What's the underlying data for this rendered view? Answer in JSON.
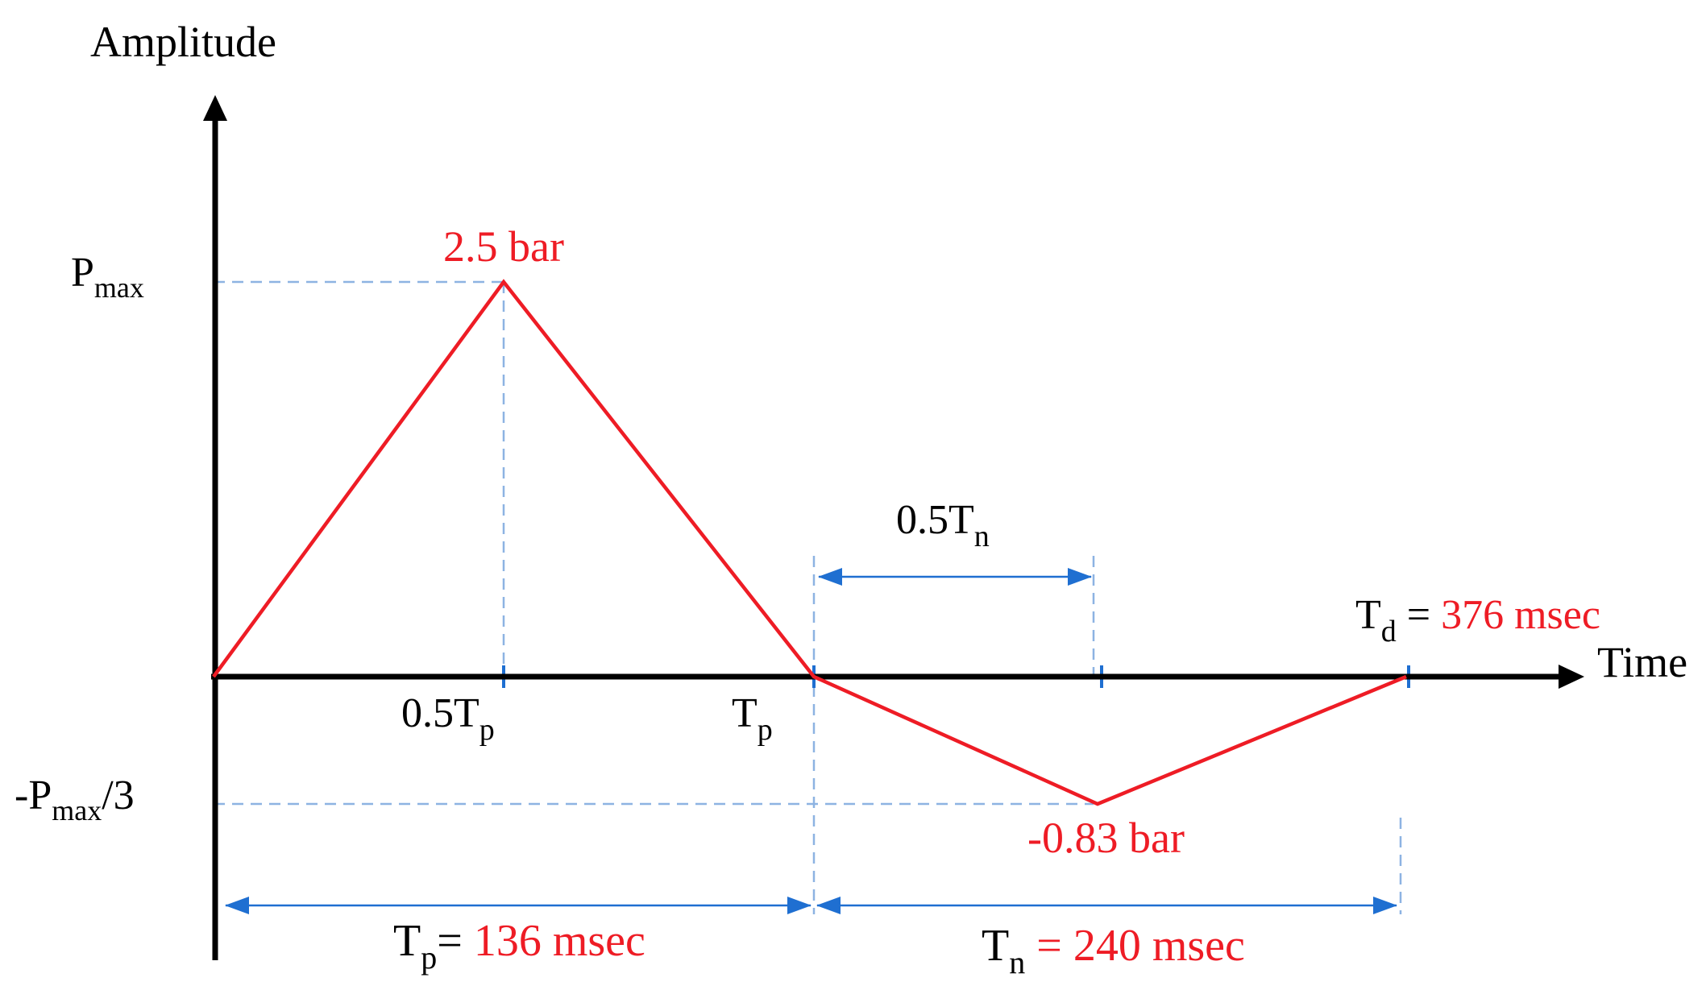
{
  "labels": {
    "y_axis": "Amplitude",
    "x_axis": "Time",
    "pmax_main": "P",
    "pmax_sub": "max",
    "neg_prefix": "-P",
    "neg_sub": "max",
    "neg_suffix": "/3",
    "half_tp_main": "0.5T",
    "half_tp_sub": "p",
    "tp_main": "T",
    "tp_sub": "p",
    "half_tn_main": "0.5T",
    "half_tn_sub": "n",
    "td_main": "T",
    "td_sub": "d",
    "td_eq": " = ",
    "td_value": "376 msec",
    "peak_value": "2.5 bar",
    "neg_peak_value": "-0.83 bar",
    "dur_tp_main": "T",
    "dur_tp_sub": "p",
    "dur_tp_eq": "= ",
    "dur_tp_value": "136 msec",
    "dur_tn_main": "T",
    "dur_tn_sub": "n",
    "dur_tn_eq": " = ",
    "dur_tn_value": "240 msec"
  },
  "colors": {
    "axis": "#000000",
    "pulse": "#ee1c25",
    "guide": "#8db3e2",
    "dimension": "#1f6fd1",
    "value_text": "#ee1c25",
    "label_text": "#000000"
  }
}
